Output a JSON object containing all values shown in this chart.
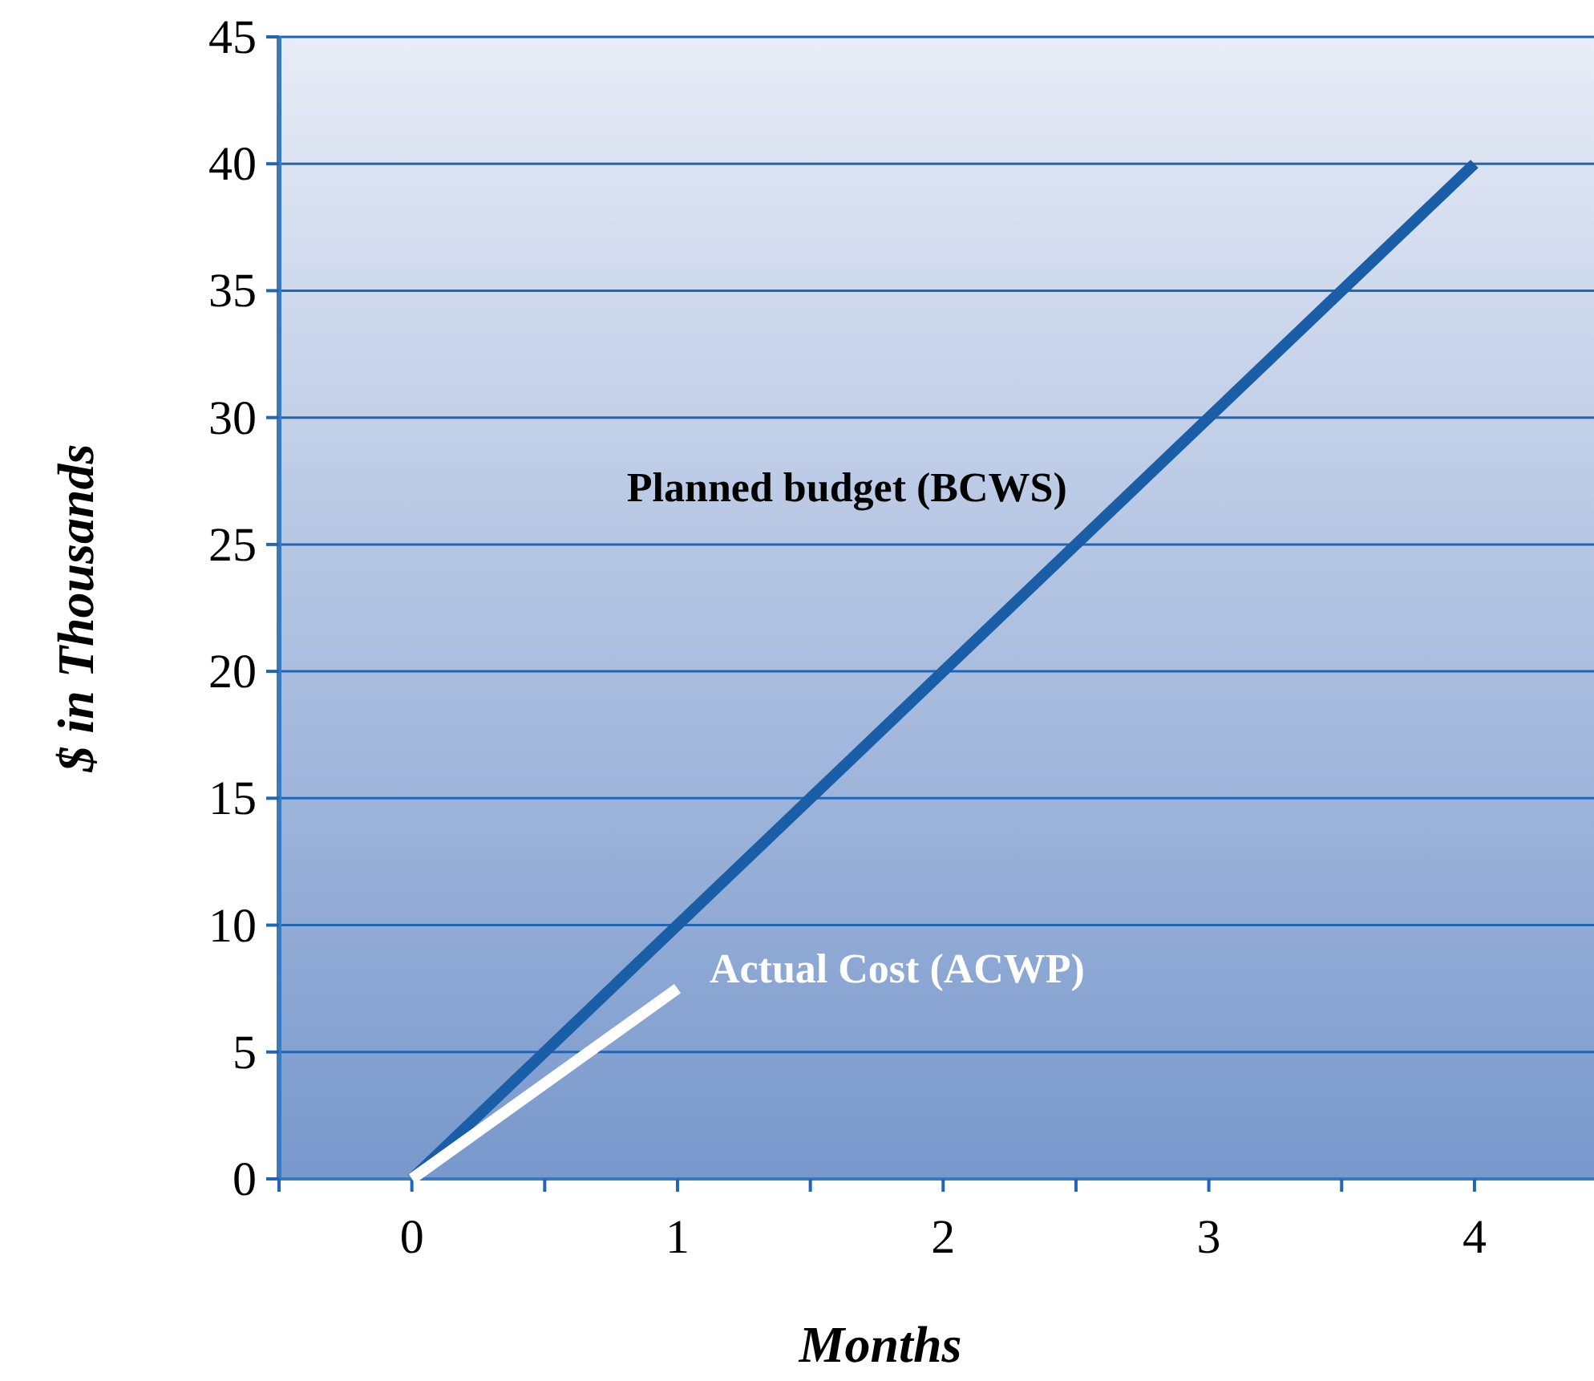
{
  "chart_data": {
    "type": "line",
    "xlabel": "Months",
    "ylabel": "$ in Thousands",
    "xlim": [
      -0.5,
      4.45
    ],
    "xticks": [
      {
        "value": -0.5,
        "label": null
      },
      0,
      {
        "value": 0.5,
        "label": null
      },
      1,
      {
        "value": 1.5,
        "label": null
      },
      2,
      {
        "value": 2.5,
        "label": null
      },
      3,
      {
        "value": 3.5,
        "label": null
      },
      4
    ],
    "ylim": [
      0,
      45
    ],
    "yticks": [
      0,
      5,
      10,
      15,
      20,
      25,
      30,
      35,
      40,
      45
    ],
    "grid": "y",
    "legend": false,
    "marker": "none",
    "line_style": "solid",
    "series": [
      {
        "name": "Planned budget (BCWS)",
        "color": "#1a5ea8",
        "x": [
          0,
          4
        ],
        "values": [
          0,
          40
        ]
      },
      {
        "name": "Actual Cost (ACWP)",
        "color": "#ffffff",
        "x": [
          0,
          1
        ],
        "values": [
          0,
          7.5
        ]
      }
    ]
  }
}
